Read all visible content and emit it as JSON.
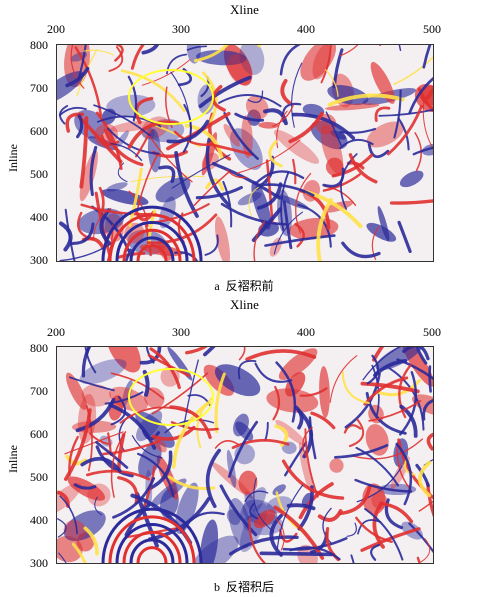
{
  "panels": [
    {
      "id": "a",
      "x_axis_title": "Xline",
      "y_axis_title": "Inline",
      "x_ticks": [
        "200",
        "300",
        "400",
        "500"
      ],
      "y_ticks": [
        "800",
        "700",
        "600",
        "500",
        "400",
        "300"
      ],
      "caption_letter": "a",
      "caption_text": "反褶积前",
      "highlight_color": "#ffff33"
    },
    {
      "id": "b",
      "x_axis_title": "Xline",
      "y_axis_title": "Inline",
      "x_ticks": [
        "200",
        "300",
        "400",
        "500"
      ],
      "y_ticks": [
        "800",
        "700",
        "600",
        "500",
        "400",
        "300"
      ],
      "caption_letter": "b",
      "caption_text": "反褶积后",
      "highlight_color": "#ffff33"
    }
  ],
  "colors": {
    "positive": "#e03030",
    "negative": "#2a2a9a",
    "zero": "#f4f0f2",
    "peak": "#ffe14a"
  }
}
